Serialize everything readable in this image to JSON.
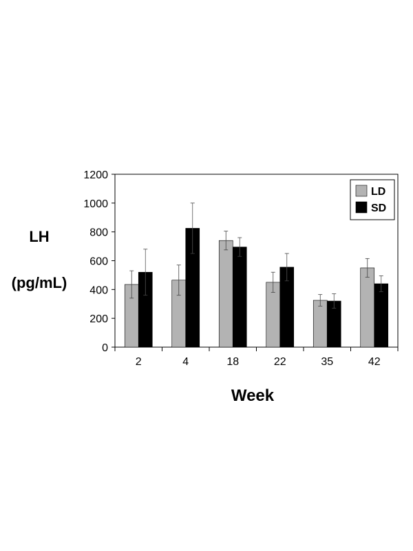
{
  "chart_data": {
    "type": "bar",
    "title": "",
    "xlabel": "Week",
    "ylabel_line1": "LH",
    "ylabel_line2": "(pg/mL)",
    "categories": [
      "2",
      "4",
      "18",
      "22",
      "35",
      "42"
    ],
    "ylim": [
      0,
      1200
    ],
    "yticks": [
      0,
      200,
      400,
      600,
      800,
      1000,
      1200
    ],
    "grid": false,
    "legend_position": "top-right",
    "series": [
      {
        "name": "LD",
        "color": "#b3b3b3",
        "values": [
          435,
          465,
          740,
          450,
          325,
          550
        ],
        "errors": [
          95,
          105,
          65,
          70,
          40,
          65
        ]
      },
      {
        "name": "SD",
        "color": "#000000",
        "values": [
          520,
          825,
          695,
          555,
          320,
          440
        ],
        "errors": [
          160,
          175,
          65,
          95,
          50,
          55
        ]
      }
    ]
  }
}
